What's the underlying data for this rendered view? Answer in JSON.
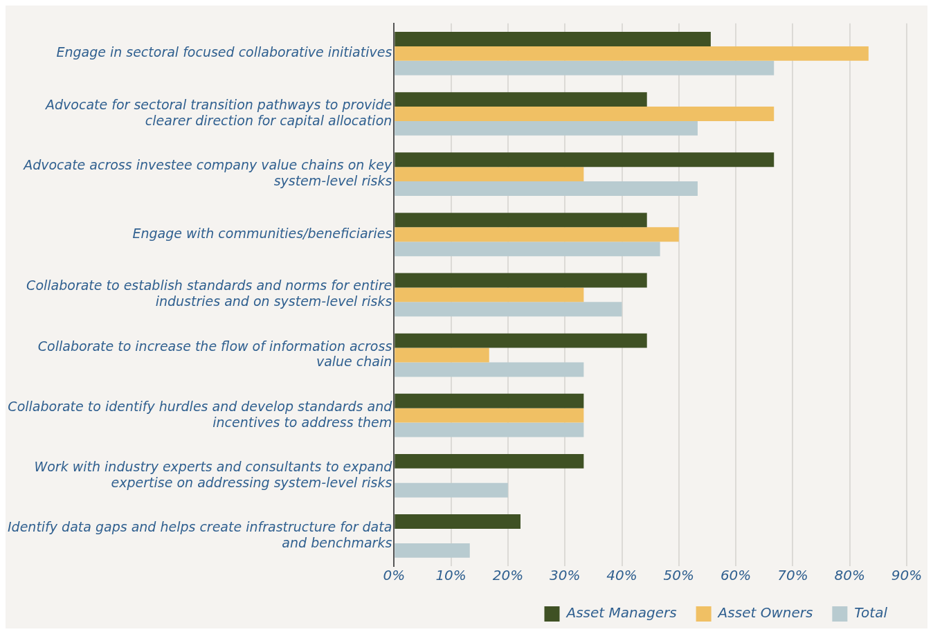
{
  "chart_data": {
    "type": "bar",
    "orientation": "horizontal",
    "categories": [
      "Engage in sectoral focused collaborative initiatives",
      "Advocate for sectoral transition pathways to provide clearer direction for capital allocation",
      "Advocate across investee company value chains on key system-level risks",
      "Engage with communities/beneficiaries",
      "Collaborate to establish standards and norms for entire industries and on system-level risks",
      "Collaborate to increase the flow of information across value chain",
      "Collaborate to identify hurdles and develop standards and incentives to address them",
      "Work with industry experts and consultants to expand expertise on addressing system-level risks",
      "Identify data gaps and helps create infrastructure for data and benchmarks"
    ],
    "series": [
      {
        "name": "Asset Managers",
        "color": "#3f5124",
        "values": [
          55.6,
          44.4,
          66.7,
          44.4,
          44.4,
          44.4,
          33.3,
          33.3,
          22.2
        ]
      },
      {
        "name": "Asset Owners",
        "color": "#f0c064",
        "values": [
          83.3,
          66.7,
          33.3,
          50,
          33.3,
          16.7,
          33.3,
          0,
          0
        ]
      },
      {
        "name": "Total",
        "color": "#b8cbd0",
        "values": [
          66.7,
          53.3,
          53.3,
          46.7,
          40,
          33.3,
          33.3,
          20,
          13.3
        ]
      }
    ],
    "xlim": [
      0,
      90
    ],
    "xticks": [
      {
        "value": 0,
        "label": "0%"
      },
      {
        "value": 10,
        "label": "10%"
      },
      {
        "value": 20,
        "label": "20%"
      },
      {
        "value": 30,
        "label": "30%"
      },
      {
        "value": 40,
        "label": "40%"
      },
      {
        "value": 50,
        "label": "50%"
      },
      {
        "value": 60,
        "label": "60%"
      },
      {
        "value": 70,
        "label": "70%"
      },
      {
        "value": 80,
        "label": "80%"
      },
      {
        "value": 90,
        "label": "90%"
      }
    ],
    "grid": "x",
    "legend": "bottom"
  }
}
